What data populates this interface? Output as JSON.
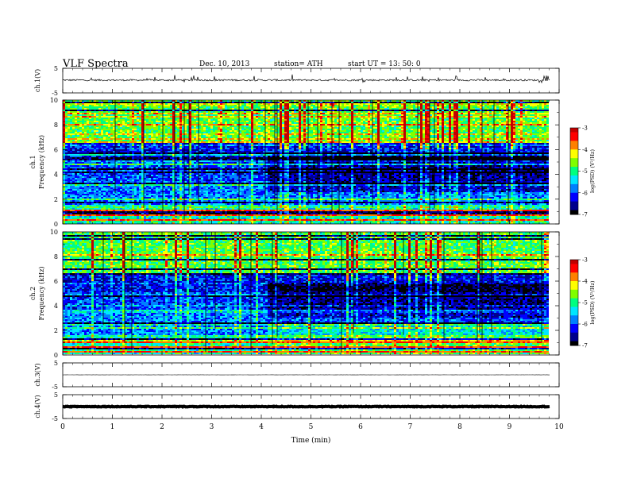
{
  "header": {
    "title": "VLF  Spectra",
    "date": "Dec. 10, 2013",
    "station": "station= ATH",
    "start_ut": "start  UT  =   13: 50: 0"
  },
  "chart_data": {
    "type": "heatmap",
    "xlabel": "Time  (min)",
    "xlim": [
      0,
      10
    ],
    "x_ticks": [
      "0",
      "1",
      "2",
      "3",
      "4",
      "5",
      "6",
      "7",
      "8",
      "9",
      "10"
    ],
    "data_end_min": 9.82,
    "panels": [
      {
        "id": "ch1-waveform",
        "kind": "waveform",
        "ylabel": "ch.1(V)",
        "ylim": [
          -5,
          5
        ],
        "y_ticks": [
          "5",
          "-5"
        ],
        "baseline": 0.2,
        "noise_amplitude": 0.35,
        "color": "#000000"
      },
      {
        "id": "ch1-spectrogram",
        "kind": "spectrogram",
        "ylabel_line1": "ch.1",
        "ylabel_line2": "Frequency  (kHz)",
        "ylim": [
          0,
          10
        ],
        "y_ticks": [
          "0",
          "2",
          "4",
          "6",
          "8",
          "10"
        ],
        "colorbar_label": "log(PSD) (V²/Hz)",
        "colorbar_ticks": [
          "-3",
          "-4",
          "-5",
          "-6",
          "-7"
        ],
        "clim": [
          -7,
          -3
        ],
        "regime_change_min": 4.1
      },
      {
        "id": "ch2-spectrogram",
        "kind": "spectrogram",
        "ylabel_line1": "ch.2",
        "ylabel_line2": "Frequency  (kHz)",
        "ylim": [
          0,
          10
        ],
        "y_ticks": [
          "0",
          "2",
          "4",
          "6",
          "8",
          "10"
        ],
        "colorbar_label": "log(PSD) (V²/Hz)",
        "colorbar_ticks": [
          "-3",
          "-4",
          "-5",
          "-6",
          "-7"
        ],
        "clim": [
          -7,
          -3
        ],
        "regime_change_min": 4.1
      },
      {
        "id": "ch3-waveform",
        "kind": "waveform",
        "ylabel": "ch.3(V)",
        "ylim": [
          -5,
          5
        ],
        "y_ticks": [
          "5",
          "-5"
        ],
        "baseline": 0.0,
        "noise_amplitude": 0.05,
        "color": "#000000"
      },
      {
        "id": "ch4-waveform",
        "kind": "waveform",
        "ylabel": "ch.4(V)",
        "ylim": [
          -5,
          5
        ],
        "y_ticks": [
          "5",
          "-5"
        ],
        "baseline": 0.0,
        "noise_amplitude": 0.15,
        "color": "#000000"
      }
    ],
    "colormap": [
      "#000000",
      "#00008c",
      "#0000ff",
      "#0080ff",
      "#00e6ff",
      "#00ff80",
      "#80ff00",
      "#ffff00",
      "#ff8000",
      "#ff0000",
      "#c00000"
    ]
  }
}
